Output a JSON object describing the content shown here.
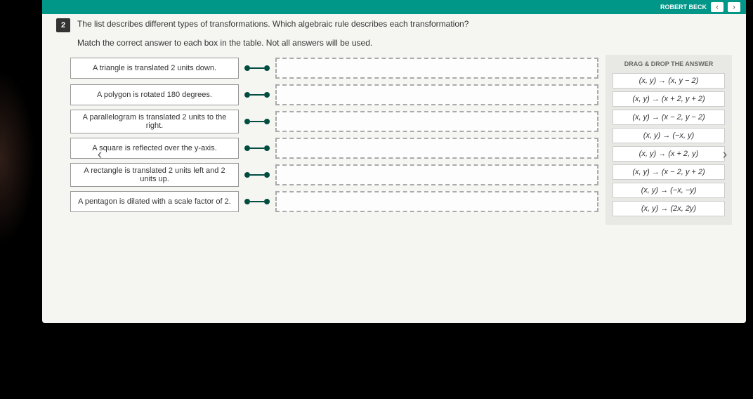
{
  "topbar": {
    "user": "ROBERT BECK",
    "btn1": "‹",
    "btn2": "›"
  },
  "question": {
    "number": "2",
    "text": "The list describes different types of transformations. Which algebraic rule describes each transformation?",
    "instruction": "Match the correct answer to each box in the table. Not all answers will be used."
  },
  "prompts": [
    "A triangle is translated 2 units down.",
    "A polygon is rotated 180 degrees.",
    "A parallelogram is translated 2 units to the right.",
    "A square is reflected over the y-axis.",
    "A rectangle is translated 2 units left and 2 units up.",
    "A pentagon is dilated with a scale factor of 2."
  ],
  "answer_panel": {
    "title": "DRAG & DROP THE ANSWER",
    "answers": [
      "(x, y) → (x, y − 2)",
      "(x, y) → (x + 2, y + 2)",
      "(x, y) → (x − 2, y − 2)",
      "(x, y) → (−x, y)",
      "(x, y) → (x + 2, y)",
      "(x, y) → (x − 2, y + 2)",
      "(x, y) → (−x, −y)",
      "(x, y) → (2x, 2y)"
    ]
  },
  "nav": {
    "left": "‹",
    "right": "›"
  }
}
